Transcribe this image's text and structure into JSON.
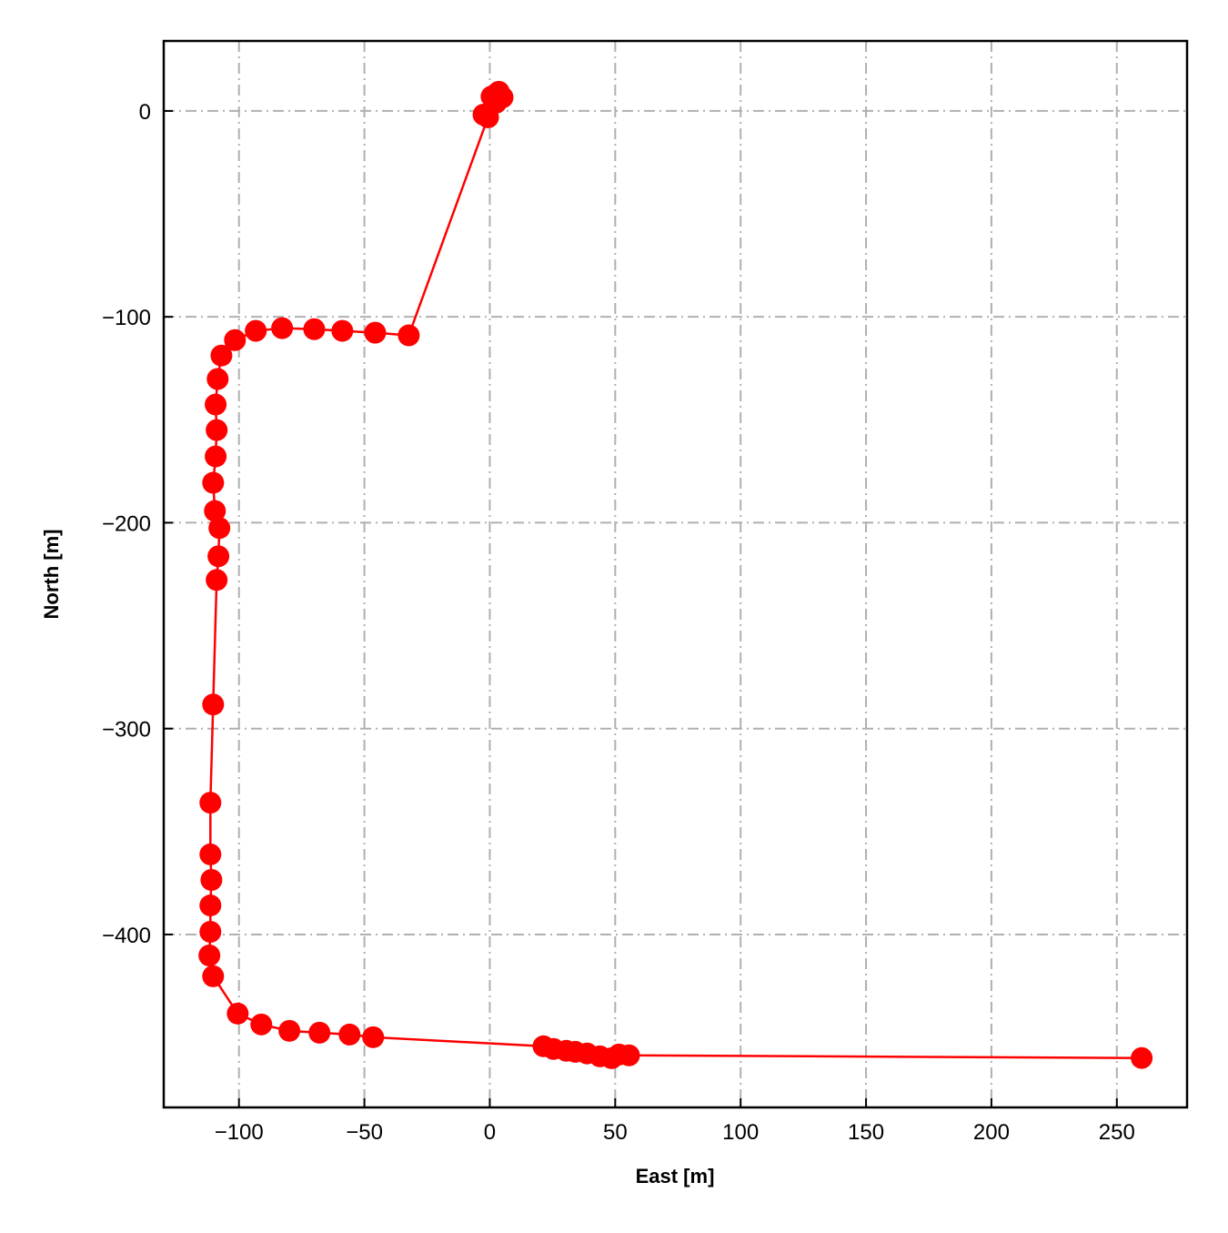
{
  "chart_data": {
    "type": "line",
    "xlabel": "East [m]",
    "ylabel": "North [m]",
    "series": [
      {
        "color": "#ff0000",
        "x": [
          3.6,
          5.1,
          0.7,
          2.5,
          -2.5,
          -0.7,
          -32.3,
          -45.7,
          -58.8,
          -70.0,
          -82.8,
          -93.3,
          -101.6,
          -107.0,
          -108.5,
          -109.3,
          -108.9,
          -109.3,
          -110.3,
          -109.6,
          -107.8,
          -108.2,
          -108.9,
          -110.3,
          -111.4,
          -111.4,
          -111.0,
          -111.4,
          -111.4,
          -111.8,
          -110.3,
          -100.5,
          -91.1,
          -79.9,
          -67.9,
          -55.9,
          -46.5,
          21.4,
          25.4,
          30.5,
          34.1,
          38.8,
          43.9,
          48.6,
          51.5,
          55.5,
          259.9
        ],
        "values": [
          9.3,
          6.6,
          7.0,
          4.0,
          -1.8,
          -3.1,
          -109.0,
          -107.7,
          -106.8,
          -106.0,
          -105.5,
          -106.8,
          -111.3,
          -118.8,
          -130.2,
          -142.6,
          -155.0,
          -167.8,
          -180.6,
          -194.3,
          -202.6,
          -216.3,
          -227.8,
          -288.3,
          -336.0,
          -361.1,
          -373.5,
          -385.9,
          -398.7,
          -410.2,
          -420.3,
          -438.4,
          -443.7,
          -446.8,
          -447.7,
          -448.6,
          -449.9,
          -454.3,
          -455.6,
          -456.5,
          -457.0,
          -457.8,
          -459.2,
          -460.1,
          -458.3,
          -458.7,
          -460.0
        ]
      }
    ],
    "xlim": [
      -130,
      278
    ],
    "ylim": [
      -484,
      34
    ],
    "xticks": [
      {
        "value": -100,
        "label": "−100"
      },
      {
        "value": -50,
        "label": "−50"
      },
      0,
      50,
      100,
      150,
      200,
      250
    ],
    "yticks": [
      0,
      {
        "value": -100,
        "label": "−100"
      },
      {
        "value": -200,
        "label": "−200"
      },
      {
        "value": -300,
        "label": "−300"
      },
      {
        "value": -400,
        "label": "−400"
      }
    ],
    "grid": true
  }
}
